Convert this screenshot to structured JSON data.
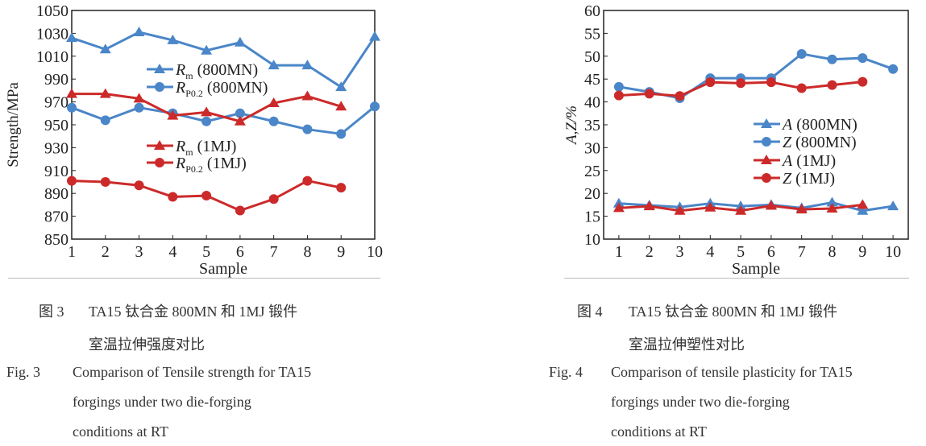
{
  "chart_data": [
    {
      "type": "line",
      "xlabel": "Sample",
      "ylabel": "Strength/MPa",
      "xlim": [
        1,
        10
      ],
      "ylim": [
        850,
        1050
      ],
      "xticks": [
        1,
        2,
        3,
        4,
        5,
        6,
        7,
        8,
        9,
        10
      ],
      "yticks": [
        850,
        870,
        890,
        910,
        930,
        950,
        970,
        990,
        1010,
        1030,
        1050
      ],
      "grid": false,
      "legend_placement": "center",
      "series": [
        {
          "name_base": "R",
          "name_sub": "m",
          "name_suffix": " (800MN)",
          "color": "#4a86c8",
          "marker": "triangle",
          "x": [
            1,
            2,
            3,
            4,
            5,
            6,
            7,
            8,
            9,
            10
          ],
          "y": [
            1026,
            1016,
            1031,
            1024,
            1015,
            1022,
            1002,
            1002,
            983,
            1027
          ]
        },
        {
          "name_base": "R",
          "name_sub": "P0.2",
          "name_suffix": " (800MN)",
          "color": "#4a86c8",
          "marker": "circle",
          "x": [
            1,
            2,
            3,
            4,
            5,
            6,
            7,
            8,
            9,
            10
          ],
          "y": [
            965,
            954,
            965,
            960,
            953,
            960,
            953,
            946,
            942,
            966
          ]
        },
        {
          "name_base": "R",
          "name_sub": "m",
          "name_suffix": " (1MJ)",
          "color": "#cc2a2a",
          "marker": "triangle",
          "x": [
            1,
            2,
            3,
            4,
            5,
            6,
            7,
            8,
            9
          ],
          "y": [
            977,
            977,
            973,
            958,
            961,
            953,
            969,
            975,
            966
          ]
        },
        {
          "name_base": "R",
          "name_sub": "P0.2",
          "name_suffix": " (1MJ)",
          "color": "#cc2a2a",
          "marker": "circle",
          "x": [
            1,
            2,
            3,
            4,
            5,
            6,
            7,
            8,
            9
          ],
          "y": [
            901,
            900,
            897,
            887,
            888,
            875,
            885,
            901,
            895
          ]
        }
      ]
    },
    {
      "type": "line",
      "xlabel": "Sample",
      "ylabel": "A,Z/%",
      "xlim": [
        0.5,
        10.5
      ],
      "ylim": [
        10,
        60
      ],
      "xticks": [
        1,
        2,
        3,
        4,
        5,
        6,
        7,
        8,
        9,
        10
      ],
      "yticks": [
        10,
        15,
        20,
        25,
        30,
        35,
        40,
        45,
        50,
        55,
        60
      ],
      "grid": false,
      "legend_placement": "center-right",
      "series": [
        {
          "name_base": "A",
          "name_sub": "",
          "name_suffix": " (800MN)",
          "color": "#4a86c8",
          "marker": "triangle",
          "x": [
            1,
            2,
            3,
            4,
            5,
            6,
            7,
            8,
            9,
            10
          ],
          "y": [
            17.8,
            17.4,
            17.0,
            17.8,
            17.2,
            17.5,
            16.8,
            18.0,
            16.2,
            17.2
          ]
        },
        {
          "name_base": "Z",
          "name_sub": "",
          "name_suffix": " (800MN)",
          "color": "#4a86c8",
          "marker": "circle",
          "x": [
            1,
            2,
            3,
            4,
            5,
            6,
            7,
            8,
            9,
            10
          ],
          "y": [
            43.3,
            42.2,
            40.8,
            45.2,
            45.2,
            45.2,
            50.5,
            49.3,
            49.6,
            47.2
          ]
        },
        {
          "name_base": "A",
          "name_sub": "",
          "name_suffix": " (1MJ)",
          "color": "#cc2a2a",
          "marker": "triangle",
          "x": [
            1,
            2,
            3,
            4,
            5,
            6,
            7,
            8,
            9
          ],
          "y": [
            16.8,
            17.2,
            16.2,
            16.9,
            16.2,
            17.3,
            16.5,
            16.7,
            17.5
          ]
        },
        {
          "name_base": "Z",
          "name_sub": "",
          "name_suffix": " (1MJ)",
          "color": "#cc2a2a",
          "marker": "circle",
          "x": [
            1,
            2,
            3,
            4,
            5,
            6,
            7,
            8,
            9
          ],
          "y": [
            41.4,
            41.8,
            41.3,
            44.3,
            44.1,
            44.3,
            43.0,
            43.7,
            44.4
          ]
        }
      ]
    }
  ],
  "captions": [
    {
      "cn_label": "图 3",
      "cn_line1": "TA15 钛合金 800MN 和 1MJ 锻件",
      "cn_line2": "室温拉伸强度对比",
      "en_label": "Fig. 3",
      "en_line1": "Comparison of Tensile strength for TA15",
      "en_line2": "forgings under two die-forging",
      "en_line3": "conditions at RT"
    },
    {
      "cn_label": "图 4",
      "cn_line1": "TA15 钛合金 800MN 和 1MJ 锻件",
      "cn_line2": "室温拉伸塑性对比",
      "en_label": "Fig. 4",
      "en_line1": "Comparison of tensile plasticity for TA15",
      "en_line2": "forgings under two die-forging",
      "en_line3": "conditions at RT"
    }
  ]
}
